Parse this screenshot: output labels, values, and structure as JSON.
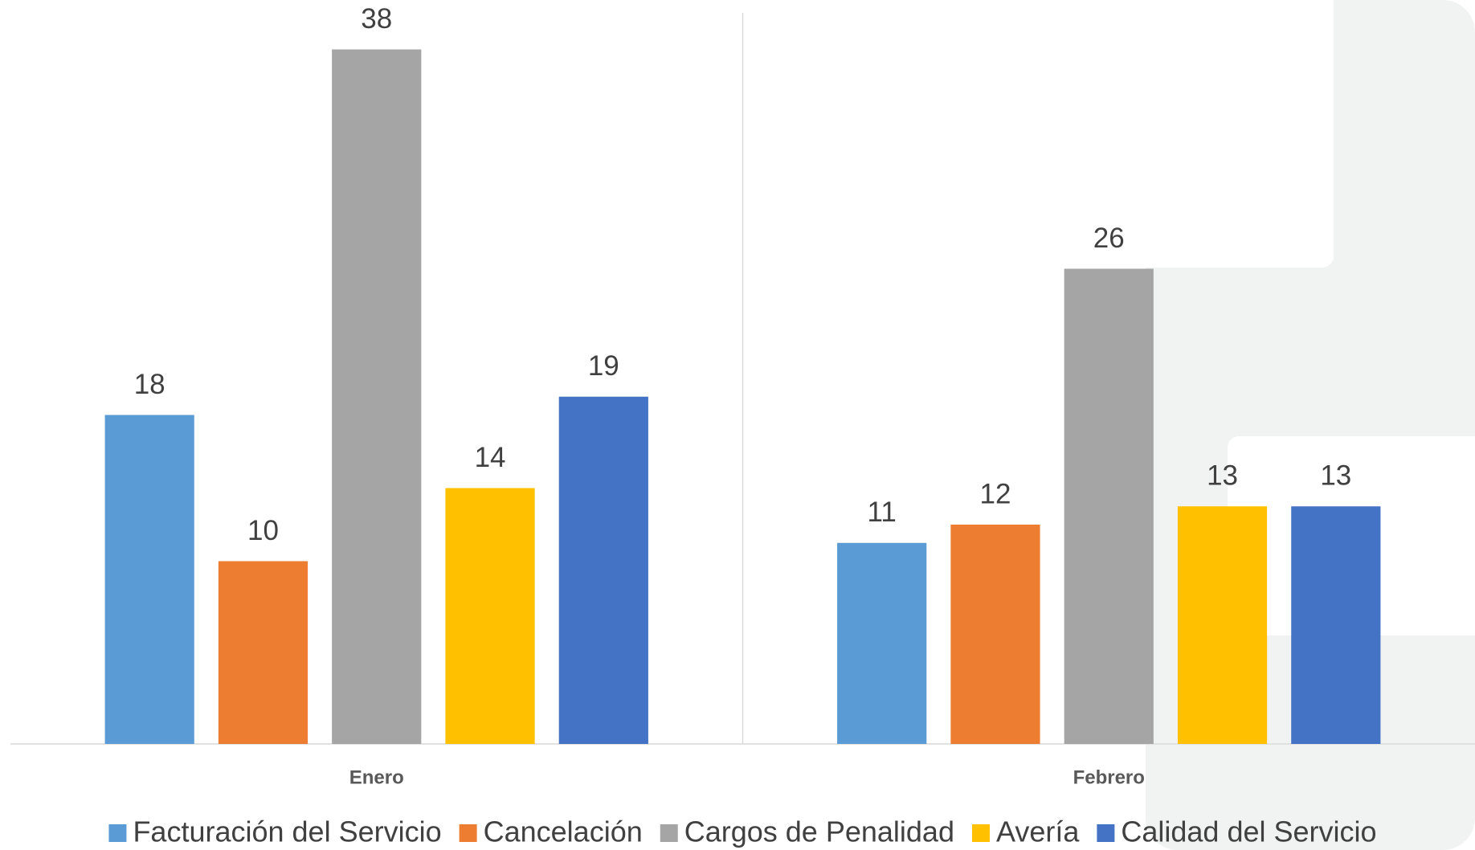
{
  "chart_data": {
    "type": "bar",
    "categories": [
      "Enero",
      "Febrero"
    ],
    "series": [
      {
        "name": "Facturación del Servicio",
        "color": "#5B9BD5",
        "values": [
          18,
          11
        ]
      },
      {
        "name": "Cancelación",
        "color": "#ED7D31",
        "values": [
          10,
          12
        ]
      },
      {
        "name": "Cargos de Penalidad",
        "color": "#A5A5A5",
        "values": [
          38,
          26
        ]
      },
      {
        "name": "Avería",
        "color": "#FFC000",
        "values": [
          14,
          13
        ]
      },
      {
        "name": "Calidad del Servicio",
        "color": "#4472C4",
        "values": [
          19,
          13
        ]
      }
    ],
    "ylim": [
      0,
      40
    ],
    "legend": "bottom"
  }
}
